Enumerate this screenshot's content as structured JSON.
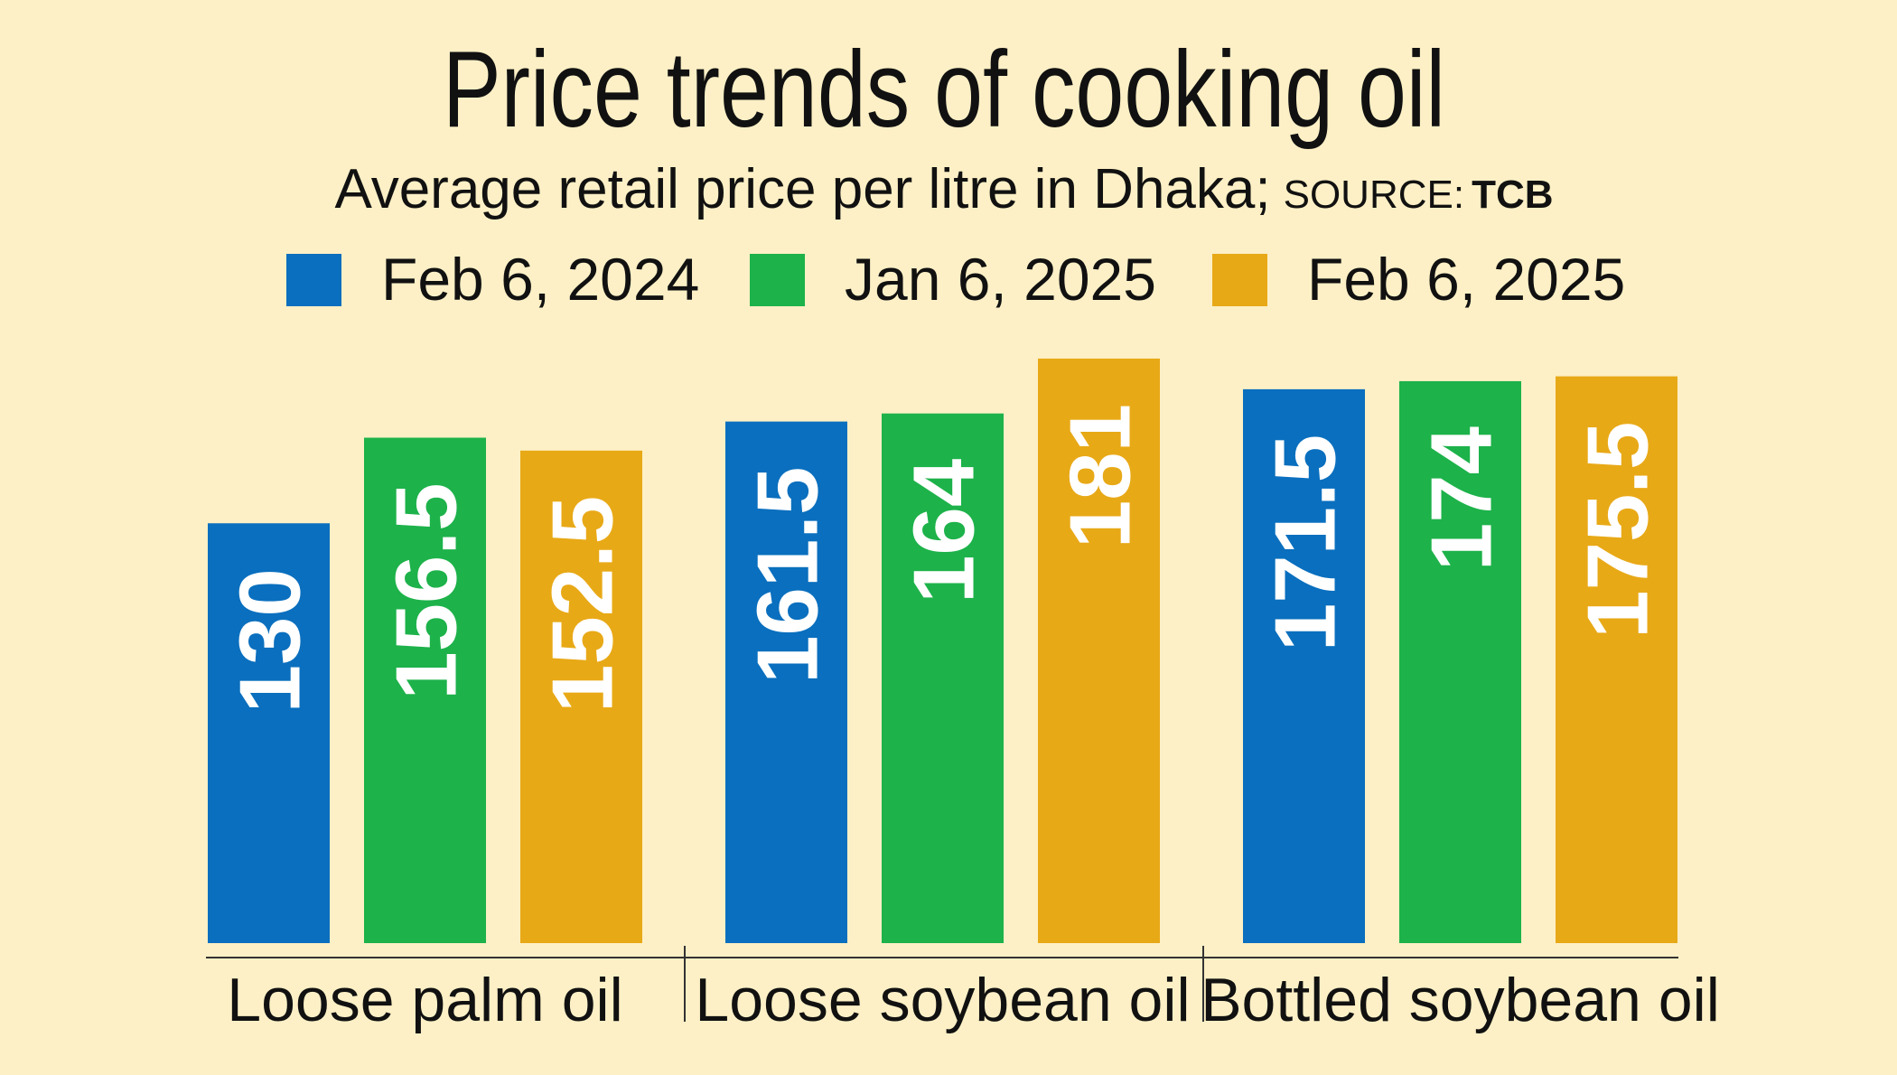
{
  "chart_data": {
    "type": "bar",
    "title": "Price trends of cooking oil",
    "subtitle": "Average retail price per litre in Dhaka;",
    "source_label": "SOURCE:",
    "source": "TCB",
    "categories": [
      "Loose palm oil",
      "Loose soybean oil",
      "Bottled soybean oil"
    ],
    "series": [
      {
        "name": "Feb 6, 2024",
        "color": "#0a6fbe",
        "values": [
          130,
          161.5,
          171.5
        ]
      },
      {
        "name": "Jan 6, 2025",
        "color": "#1db24a",
        "values": [
          156.5,
          164,
          174
        ]
      },
      {
        "name": "Feb 6, 2025",
        "color": "#e8a917",
        "values": [
          152.5,
          181,
          175.5
        ]
      }
    ]
  }
}
